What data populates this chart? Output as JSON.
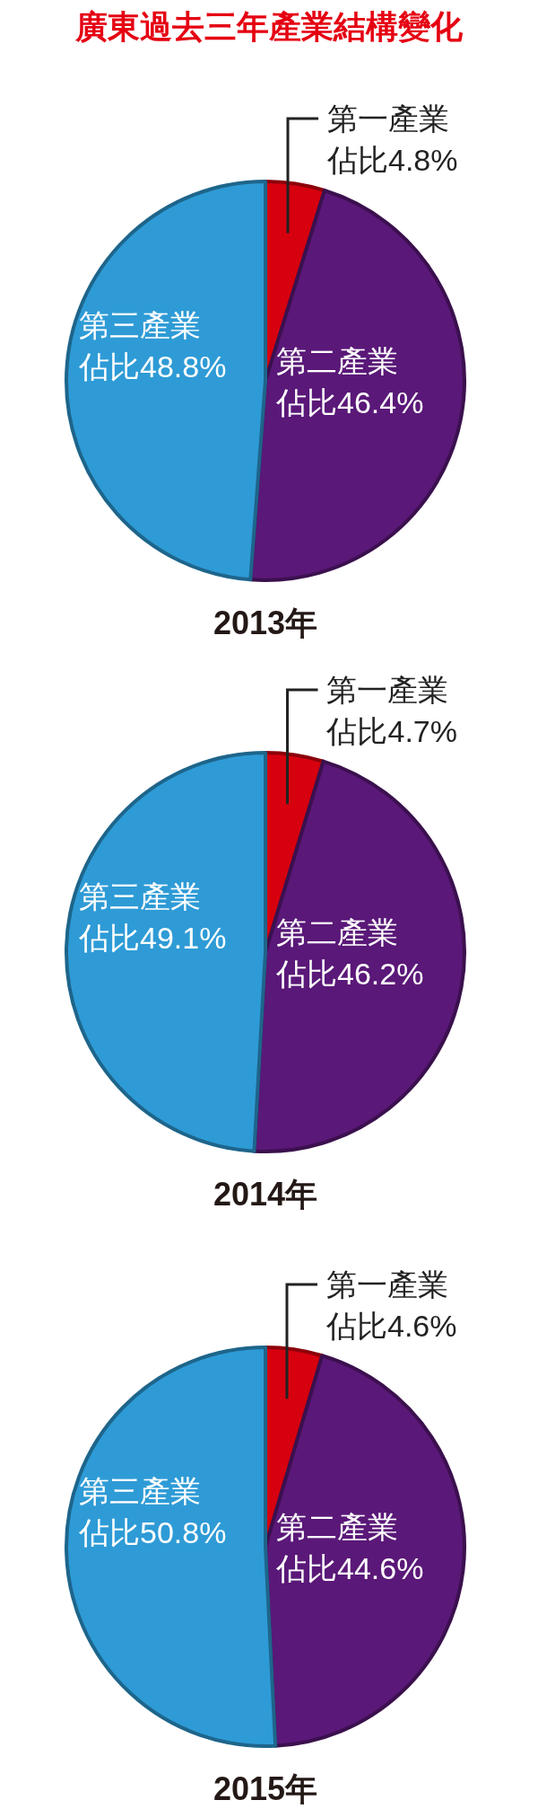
{
  "chart_data": [
    {
      "type": "pie",
      "title": "廣東過去三年產業結構變化",
      "subtitle": "2013年",
      "categories": [
        "第一產業",
        "第二產業",
        "第三產業"
      ],
      "values": [
        4.8,
        46.4,
        48.8
      ],
      "colors": [
        "#d7000f",
        "#5a1878",
        "#2e9bd6"
      ],
      "value_labels": [
        "佔比4.8%",
        "佔比46.4%",
        "佔比48.8%"
      ]
    },
    {
      "type": "pie",
      "subtitle": "2014年",
      "categories": [
        "第一產業",
        "第二產業",
        "第三產業"
      ],
      "values": [
        4.7,
        46.2,
        49.1
      ],
      "colors": [
        "#d7000f",
        "#5a1878",
        "#2e9bd6"
      ],
      "value_labels": [
        "佔比4.7%",
        "佔比46.2%",
        "佔比49.1%"
      ]
    },
    {
      "type": "pie",
      "subtitle": "2015年",
      "categories": [
        "第一產業",
        "第二產業",
        "第三產業"
      ],
      "values": [
        4.6,
        44.6,
        50.8
      ],
      "colors": [
        "#d7000f",
        "#5a1878",
        "#2e9bd6"
      ],
      "value_labels": [
        "佔比4.6%",
        "佔比44.6%",
        "佔比50.8%"
      ]
    }
  ]
}
